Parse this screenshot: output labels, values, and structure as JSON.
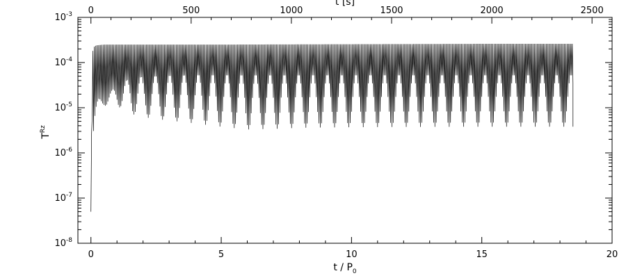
{
  "chart_data": {
    "type": "line",
    "title": "",
    "xlabel": "t / P",
    "xlabel_sub": "0",
    "top_xlabel": "t [s]",
    "ylabel": "T",
    "ylabel_sup": "Rz",
    "xlim": [
      -0.5,
      20
    ],
    "top_xlim": [
      -65,
      2600
    ],
    "ylim": [
      1e-08,
      0.001
    ],
    "yscale": "log",
    "x_ticks": [
      0,
      5,
      10,
      15,
      20
    ],
    "x_tick_labels": [
      "0",
      "5",
      "10",
      "15",
      "20"
    ],
    "top_x_ticks": [
      0,
      500,
      1000,
      1500,
      2000,
      2500
    ],
    "top_x_tick_labels": [
      "0",
      "500",
      "1000",
      "1500",
      "2000",
      "2500"
    ],
    "y_tick_mantissa": [
      "10",
      "10",
      "10",
      "10",
      "10",
      "10"
    ],
    "y_tick_exponents": [
      "-8",
      "-7",
      "-6",
      "-5",
      "-4",
      "-3"
    ],
    "grid": false,
    "color": "#000000",
    "series": [
      {
        "oscillation_period_in_x": 0.05,
        "beat_period_in_x": 0.55,
        "x_start": 0.0,
        "x_end": 18.5,
        "upper_envelope_x": [
          0,
          0.05,
          0.1,
          0.2,
          0.5,
          1,
          2,
          5,
          10,
          15,
          18.5
        ],
        "upper_envelope_y": [
          5e-08,
          0.00015,
          0.00022,
          0.00024,
          0.00025,
          0.00025,
          0.00025,
          0.00025,
          0.000255,
          0.00026,
          0.00026
        ],
        "lower_envelope_x": [
          0,
          0.05,
          0.1,
          0.2,
          0.3,
          0.5,
          0.8,
          1.0,
          1.5,
          2,
          3,
          4,
          5,
          6,
          7,
          8,
          10,
          12,
          15,
          18.5
        ],
        "lower_envelope_y": [
          5e-08,
          6e-06,
          1.8e-06,
          5.5e-06,
          9e-06,
          1.1e-05,
          1.15e-05,
          1.1e-05,
          7.5e-06,
          6.2e-06,
          5.2e-06,
          4.5e-06,
          3.8e-06,
          3.3e-06,
          3.4e-06,
          3.6e-06,
          3.7e-06,
          3.75e-06,
          3.8e-06,
          3.8e-06
        ],
        "beat_floor_y": [
          5e-08,
          1.2e-05,
          1.1e-05,
          1.2e-05,
          1.6e-05,
          2e-05,
          2.4e-05,
          3.2e-05,
          4.5e-05,
          5e-05,
          5.3e-05,
          5.5e-05,
          5.5e-05,
          5.5e-05,
          5.5e-05,
          5.5e-05,
          5.5e-05,
          5.5e-05,
          5.5e-05,
          5.5e-05
        ]
      }
    ]
  }
}
